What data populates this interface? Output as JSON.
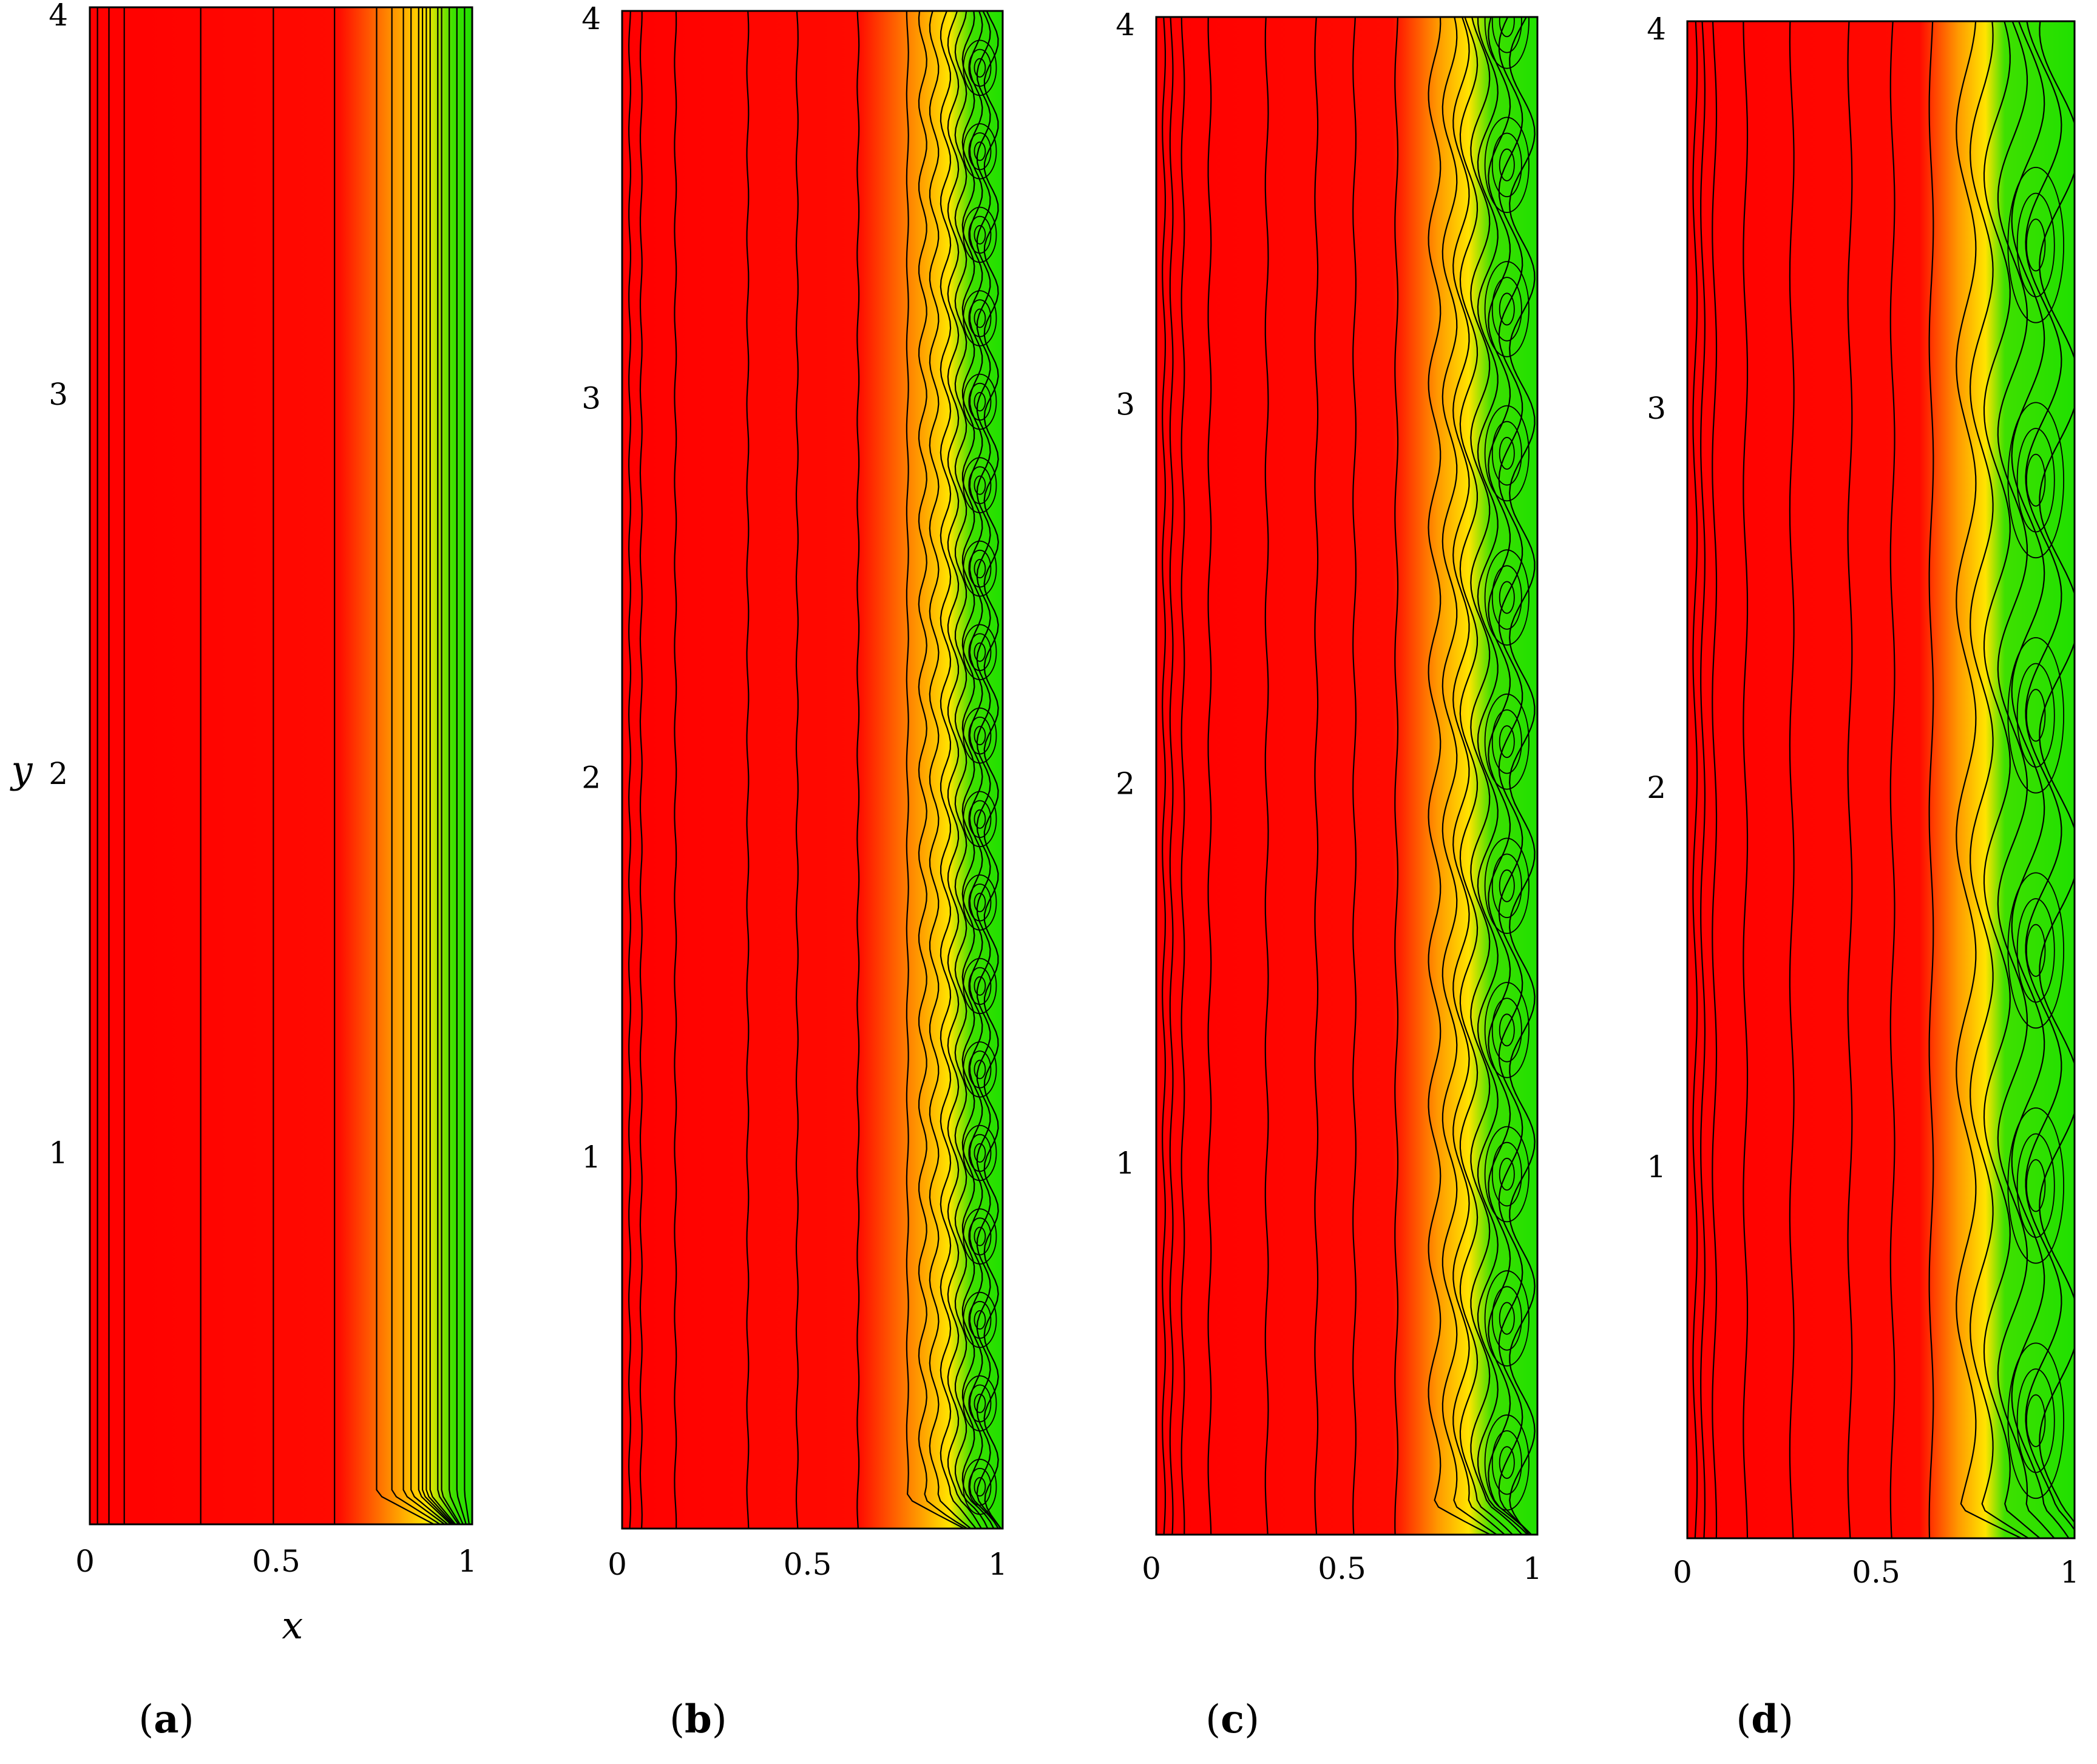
{
  "chart_data": [
    {
      "type": "heatmap",
      "panel_label": "a",
      "xlabel": "x",
      "ylabel": "y",
      "xlim": [
        0,
        1
      ],
      "ylim": [
        0,
        4
      ],
      "x_ticks": [
        "0",
        "0.5",
        "1"
      ],
      "y_ticks": [
        "1",
        "2",
        "3",
        "4"
      ],
      "color_stops": [
        {
          "x": 0.0,
          "color": "#ff0000"
        },
        {
          "x": 0.65,
          "color": "#ff0a00"
        },
        {
          "x": 0.8,
          "color": "#ff9a00"
        },
        {
          "x": 0.88,
          "color": "#ffe400"
        },
        {
          "x": 0.95,
          "color": "#3ee000"
        },
        {
          "x": 1.0,
          "color": "#20e000"
        }
      ],
      "contour_x": [
        0.02,
        0.05,
        0.09,
        0.29,
        0.48,
        0.64,
        0.75,
        0.79,
        0.82,
        0.84,
        0.86,
        0.87,
        0.88,
        0.89,
        0.91,
        0.92,
        0.94,
        0.96,
        0.98
      ],
      "wave_amplitude": 0.0,
      "wavelength": 0.5,
      "interface_x": 0.86
    },
    {
      "type": "heatmap",
      "panel_label": "b",
      "xlim": [
        0,
        1
      ],
      "ylim": [
        0,
        4
      ],
      "x_ticks": [
        "0",
        "0.5",
        "1"
      ],
      "y_ticks": [
        "1",
        "2",
        "3",
        "4"
      ],
      "color_stops": [
        {
          "x": 0.0,
          "color": "#ff0000"
        },
        {
          "x": 0.62,
          "color": "#ff0a00"
        },
        {
          "x": 0.78,
          "color": "#ff9a00"
        },
        {
          "x": 0.86,
          "color": "#ffe400"
        },
        {
          "x": 0.92,
          "color": "#3ee000"
        },
        {
          "x": 1.0,
          "color": "#20e000"
        }
      ],
      "contour_x": [
        0.02,
        0.05,
        0.14,
        0.33,
        0.46,
        0.62,
        0.75,
        0.79,
        0.82,
        0.85,
        0.87,
        0.89,
        0.91,
        0.93,
        0.95,
        0.97
      ],
      "wave_amplitude": 0.015,
      "wavelength": 0.22,
      "interface_x": 0.88
    },
    {
      "type": "heatmap",
      "panel_label": "c",
      "xlim": [
        0,
        1
      ],
      "ylim": [
        0,
        4
      ],
      "x_ticks": [
        "0",
        "0.5",
        "1"
      ],
      "y_ticks": [
        "1",
        "2",
        "3",
        "4"
      ],
      "color_stops": [
        {
          "x": 0.0,
          "color": "#ff0000"
        },
        {
          "x": 0.62,
          "color": "#ff0a00"
        },
        {
          "x": 0.74,
          "color": "#ff9a00"
        },
        {
          "x": 0.82,
          "color": "#ffe400"
        },
        {
          "x": 0.88,
          "color": "#3ee000"
        },
        {
          "x": 1.0,
          "color": "#20e000"
        }
      ],
      "contour_x": [
        0.02,
        0.04,
        0.07,
        0.14,
        0.29,
        0.42,
        0.52,
        0.63,
        0.73,
        0.77,
        0.8,
        0.82,
        0.85,
        0.87,
        0.9,
        0.93,
        0.96
      ],
      "wave_amplitude": 0.025,
      "wavelength": 0.38,
      "interface_x": 0.84
    },
    {
      "type": "heatmap",
      "panel_label": "d",
      "xlim": [
        0,
        1
      ],
      "ylim": [
        0,
        4
      ],
      "x_ticks": [
        "0",
        "0.5",
        "1"
      ],
      "y_ticks": [
        "1",
        "2",
        "3",
        "4"
      ],
      "color_stops": [
        {
          "x": 0.0,
          "color": "#ff0000"
        },
        {
          "x": 0.6,
          "color": "#ff0a00"
        },
        {
          "x": 0.7,
          "color": "#ff9a00"
        },
        {
          "x": 0.77,
          "color": "#ffe400"
        },
        {
          "x": 0.82,
          "color": "#3ee000"
        },
        {
          "x": 1.0,
          "color": "#20e000"
        }
      ],
      "contour_x": [
        0.02,
        0.04,
        0.07,
        0.15,
        0.27,
        0.42,
        0.53,
        0.63,
        0.72,
        0.76,
        0.8,
        0.84,
        0.88,
        0.92,
        0.96
      ],
      "wave_amplitude": 0.035,
      "wavelength": 0.62,
      "interface_x": 0.8
    }
  ]
}
